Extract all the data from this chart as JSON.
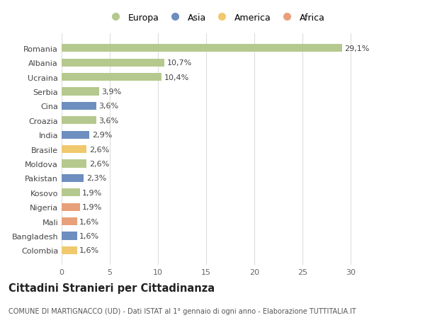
{
  "countries": [
    "Romania",
    "Albania",
    "Ucraina",
    "Serbia",
    "Cina",
    "Croazia",
    "India",
    "Brasile",
    "Moldova",
    "Pakistan",
    "Kosovo",
    "Nigeria",
    "Mali",
    "Bangladesh",
    "Colombia"
  ],
  "values": [
    29.1,
    10.7,
    10.4,
    3.9,
    3.6,
    3.6,
    2.9,
    2.6,
    2.6,
    2.3,
    1.9,
    1.9,
    1.6,
    1.6,
    1.6
  ],
  "labels": [
    "29,1%",
    "10,7%",
    "10,4%",
    "3,9%",
    "3,6%",
    "3,6%",
    "2,9%",
    "2,6%",
    "2,6%",
    "2,3%",
    "1,9%",
    "1,9%",
    "1,6%",
    "1,6%",
    "1,6%"
  ],
  "continents": [
    "Europa",
    "Europa",
    "Europa",
    "Europa",
    "Asia",
    "Europa",
    "Asia",
    "America",
    "Europa",
    "Asia",
    "Europa",
    "Africa",
    "Africa",
    "Asia",
    "America"
  ],
  "continent_colors": {
    "Europa": "#b5c98e",
    "Asia": "#6d8ebf",
    "America": "#f0c96e",
    "Africa": "#e8a07a"
  },
  "legend_order": [
    "Europa",
    "Asia",
    "America",
    "Africa"
  ],
  "xlim": [
    0,
    32
  ],
  "xticks": [
    0,
    5,
    10,
    15,
    20,
    25,
    30
  ],
  "title": "Cittadini Stranieri per Cittadinanza",
  "subtitle": "COMUNE DI MARTIGNACCO (UD) - Dati ISTAT al 1° gennaio di ogni anno - Elaborazione TUTTITALIA.IT",
  "bg_color": "#ffffff",
  "grid_color": "#dddddd",
  "bar_height": 0.55,
  "label_fontsize": 8,
  "tick_fontsize": 8,
  "title_fontsize": 10.5,
  "subtitle_fontsize": 7
}
